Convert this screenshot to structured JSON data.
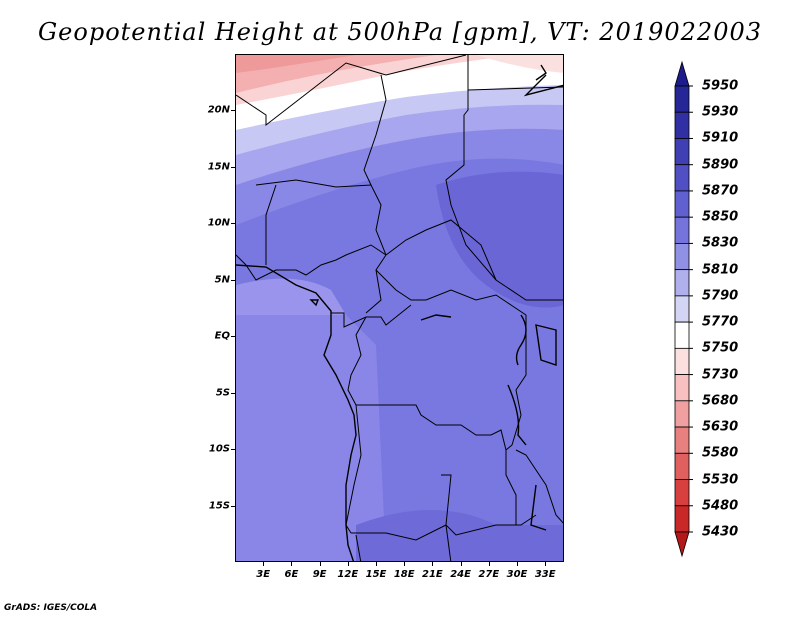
{
  "title": "Geopotential Height at 500hPa [gpm], VT: 2019022003",
  "credit": "GrADS: IGES/COLA",
  "map": {
    "lat_labels": [
      "20N",
      "15N",
      "10N",
      "5N",
      "EQ",
      "5S",
      "10S",
      "15S"
    ],
    "lat_values": [
      20,
      15,
      10,
      5,
      0,
      -5,
      -10,
      -15
    ],
    "lon_labels": [
      "3E",
      "6E",
      "9E",
      "12E",
      "15E",
      "18E",
      "21E",
      "24E",
      "27E",
      "30E",
      "33E"
    ],
    "lon_values": [
      3,
      6,
      9,
      12,
      15,
      18,
      21,
      24,
      27,
      30,
      33
    ],
    "extent": {
      "lon_min": 0,
      "lon_max": 35,
      "lat_min": -20,
      "lat_max": 25
    }
  },
  "colorbar": {
    "levels": [
      "5950",
      "5930",
      "5910",
      "5890",
      "5870",
      "5850",
      "5830",
      "5810",
      "5790",
      "5770",
      "5750",
      "5730",
      "5680",
      "5630",
      "5580",
      "5530",
      "5480",
      "5430"
    ],
    "colors": [
      "#1c1c8c",
      "#262696",
      "#3030a4",
      "#4040b4",
      "#5050c4",
      "#6060d0",
      "#7474dc",
      "#9090e4",
      "#b0b0ec",
      "#d4d4f4",
      "#ffffff",
      "#fce0e0",
      "#f8c0c0",
      "#f0a0a0",
      "#e88080",
      "#e06060",
      "#d84040",
      "#c82828",
      "#b41818"
    ]
  }
}
